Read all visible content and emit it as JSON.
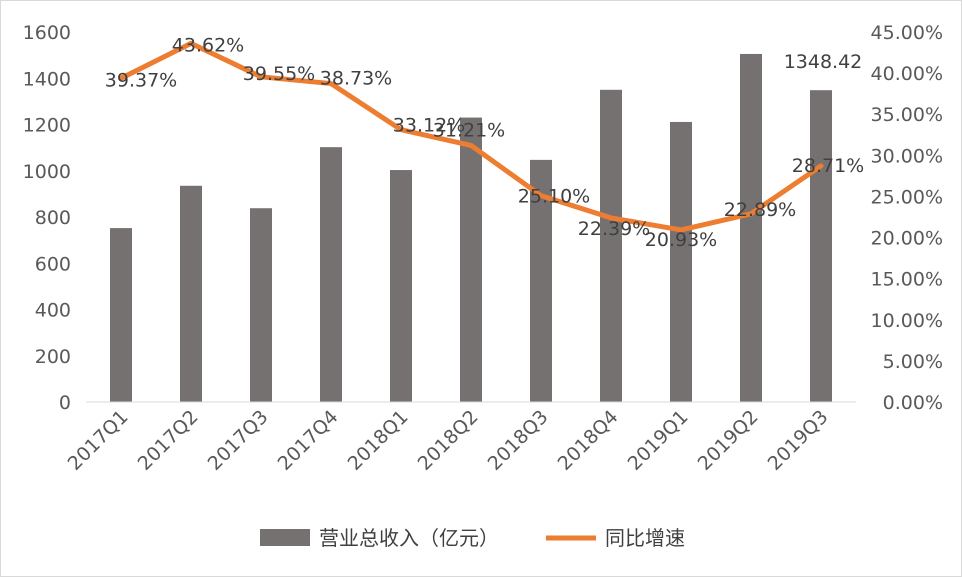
{
  "chart_data": {
    "type": "bar+line",
    "categories": [
      "2017Q1",
      "2017Q2",
      "2017Q3",
      "2017Q4",
      "2018Q1",
      "2018Q2",
      "2018Q3",
      "2018Q4",
      "2019Q1",
      "2019Q2",
      "2019Q3"
    ],
    "series": [
      {
        "name": "营业总收入（亿元）",
        "type": "bar",
        "axis": "left",
        "color": "#757171",
        "values": [
          752,
          935,
          838,
          1102,
          1003,
          1230,
          1047,
          1350,
          1211,
          1505,
          1348.42
        ]
      },
      {
        "name": "同比增速",
        "type": "line",
        "axis": "right",
        "color": "#ED7D31",
        "values": [
          39.37,
          43.62,
          39.55,
          38.73,
          33.12,
          31.21,
          25.1,
          22.39,
          20.93,
          22.89,
          28.71
        ]
      }
    ],
    "data_labels": {
      "bar": [
        "",
        "",
        "",
        "",
        "",
        "",
        "",
        "",
        "",
        "",
        "1348.42"
      ],
      "line": [
        "39.37%",
        "43.62%",
        "39.55%",
        "38.73%",
        "33.12%",
        "31.21%",
        "25.10%",
        "22.39%",
        "20.93%",
        "22.89%",
        "28.71%"
      ]
    },
    "y_left": {
      "ticks": [
        "0",
        "200",
        "400",
        "600",
        "800",
        "1000",
        "1200",
        "1400",
        "1600"
      ],
      "ylim": [
        0,
        1600
      ]
    },
    "y_right": {
      "ticks": [
        "0.00%",
        "5.00%",
        "10.00%",
        "15.00%",
        "20.00%",
        "25.00%",
        "30.00%",
        "35.00%",
        "40.00%",
        "45.00%"
      ],
      "ylim": [
        0,
        45
      ]
    },
    "legend": {
      "position": "bottom",
      "entries": [
        "营业总收入（亿元）",
        "同比增速"
      ]
    },
    "grid": false
  }
}
